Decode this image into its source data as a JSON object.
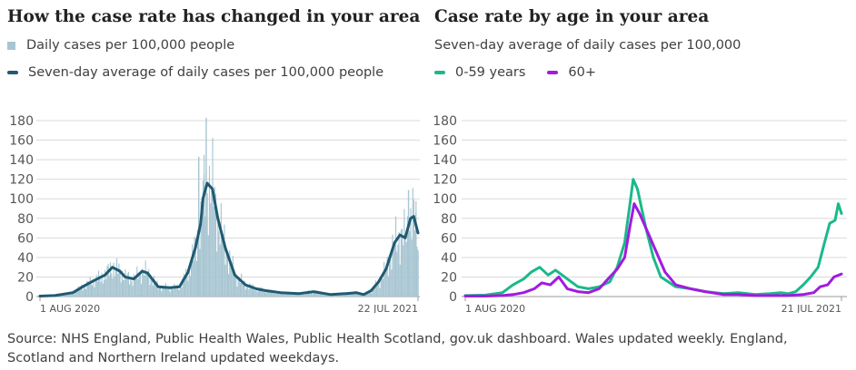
{
  "source": "Source: NHS England, Public Health Wales, Public Health Scotland, gov.uk dashboard. Wales updated weekly. England, Scotland and Northern Ireland updated weekdays.",
  "colors": {
    "bars": "#a8c6d2",
    "average_line": "#1f5a72",
    "age_0_59": "#1bb98a",
    "age_60_plus": "#a11be0",
    "gridline": "#d9d9d9",
    "axis_text": "#555555"
  },
  "chart_data": [
    {
      "type": "bar",
      "title": "How the case rate has changed in your area",
      "legend": [
        {
          "label": "Daily cases per 100,000 people",
          "marker": "bar"
        },
        {
          "label": "Seven-day average of daily cases per 100,000 people",
          "marker": "line"
        }
      ],
      "x_tick_labels": [
        "1 AUG 2020",
        "22 JUL 2021"
      ],
      "x_range": [
        "2020-08-01",
        "2021-07-22"
      ],
      "y_ticks": [
        0,
        20,
        40,
        60,
        80,
        100,
        120,
        140,
        160,
        180
      ],
      "ylim": [
        0,
        180
      ],
      "grid": true,
      "series": [
        {
          "name": "Seven-day average of daily cases per 100,000 people",
          "kind": "line",
          "x": [
            "2020-08-01",
            "2020-08-15",
            "2020-09-01",
            "2020-09-10",
            "2020-09-20",
            "2020-10-01",
            "2020-10-08",
            "2020-10-15",
            "2020-10-20",
            "2020-10-28",
            "2020-11-05",
            "2020-11-10",
            "2020-11-20",
            "2020-12-01",
            "2020-12-10",
            "2020-12-18",
            "2020-12-25",
            "2020-12-30",
            "2021-01-01",
            "2021-01-05",
            "2021-01-10",
            "2021-01-15",
            "2021-01-22",
            "2021-01-31",
            "2021-02-10",
            "2021-02-20",
            "2021-03-01",
            "2021-03-15",
            "2021-04-01",
            "2021-04-15",
            "2021-05-01",
            "2021-05-15",
            "2021-05-25",
            "2021-06-01",
            "2021-06-08",
            "2021-06-15",
            "2021-06-22",
            "2021-06-30",
            "2021-07-05",
            "2021-07-10",
            "2021-07-15",
            "2021-07-18",
            "2021-07-22"
          ],
          "y": [
            0.5,
            1,
            4,
            10,
            16,
            22,
            30,
            26,
            20,
            18,
            26,
            24,
            10,
            9,
            10,
            25,
            50,
            75,
            100,
            116,
            110,
            80,
            50,
            22,
            12,
            8,
            6,
            4,
            3,
            5,
            2,
            3,
            4,
            2,
            6,
            15,
            28,
            55,
            63,
            60,
            80,
            82,
            65
          ]
        },
        {
          "name": "Daily cases per 100,000 people",
          "kind": "bar",
          "x": [
            "2020-12-28",
            "2021-01-02",
            "2021-01-04",
            "2021-07-13",
            "2021-07-20"
          ],
          "y": [
            143,
            125,
            183,
            109,
            86
          ]
        }
      ]
    },
    {
      "type": "line",
      "title": "Case rate by age in your area",
      "subtitle": "Seven-day average of daily cases per 100,000",
      "x_tick_labels": [
        "1 AUG 2020",
        "21 JUL 2021"
      ],
      "x_range": [
        "2020-08-01",
        "2021-07-21"
      ],
      "y_ticks": [
        0,
        20,
        40,
        60,
        80,
        100,
        120,
        140,
        160,
        180
      ],
      "ylim": [
        0,
        180
      ],
      "grid": true,
      "series": [
        {
          "name": "0-59 years",
          "x": [
            "2020-08-01",
            "2020-08-20",
            "2020-09-05",
            "2020-09-15",
            "2020-09-25",
            "2020-10-02",
            "2020-10-10",
            "2020-10-18",
            "2020-10-25",
            "2020-11-05",
            "2020-11-15",
            "2020-11-25",
            "2020-12-05",
            "2020-12-15",
            "2020-12-22",
            "2020-12-29",
            "2021-01-03",
            "2021-01-06",
            "2021-01-10",
            "2021-01-18",
            "2021-01-25",
            "2021-02-01",
            "2021-02-15",
            "2021-03-01",
            "2021-03-15",
            "2021-04-01",
            "2021-04-15",
            "2021-05-01",
            "2021-05-15",
            "2021-05-25",
            "2021-06-01",
            "2021-06-08",
            "2021-06-15",
            "2021-06-22",
            "2021-06-29",
            "2021-07-05",
            "2021-07-10",
            "2021-07-15",
            "2021-07-18",
            "2021-07-21"
          ],
          "y": [
            1,
            1.5,
            4,
            12,
            18,
            25,
            30,
            22,
            27,
            18,
            10,
            8,
            10,
            15,
            30,
            55,
            95,
            120,
            110,
            70,
            40,
            20,
            10,
            8,
            5,
            3,
            4,
            2,
            3,
            4,
            3,
            5,
            12,
            20,
            30,
            55,
            75,
            78,
            95,
            85
          ]
        },
        {
          "name": "60+",
          "x": [
            "2020-08-01",
            "2020-08-20",
            "2020-09-05",
            "2020-09-15",
            "2020-09-25",
            "2020-10-05",
            "2020-10-12",
            "2020-10-20",
            "2020-10-28",
            "2020-11-05",
            "2020-11-15",
            "2020-11-25",
            "2020-12-05",
            "2020-12-15",
            "2020-12-22",
            "2020-12-29",
            "2021-01-03",
            "2021-01-07",
            "2021-01-12",
            "2021-01-20",
            "2021-01-28",
            "2021-02-05",
            "2021-02-15",
            "2021-03-01",
            "2021-03-15",
            "2021-04-01",
            "2021-04-15",
            "2021-05-01",
            "2021-05-15",
            "2021-06-01",
            "2021-06-15",
            "2021-06-25",
            "2021-07-01",
            "2021-07-08",
            "2021-07-14",
            "2021-07-21"
          ],
          "y": [
            0.5,
            0.5,
            1,
            2,
            4,
            8,
            14,
            12,
            20,
            8,
            5,
            4,
            8,
            20,
            28,
            40,
            72,
            95,
            85,
            65,
            45,
            25,
            12,
            8,
            5,
            2,
            2,
            1,
            1,
            1,
            2,
            4,
            10,
            12,
            20,
            23
          ]
        }
      ]
    }
  ]
}
